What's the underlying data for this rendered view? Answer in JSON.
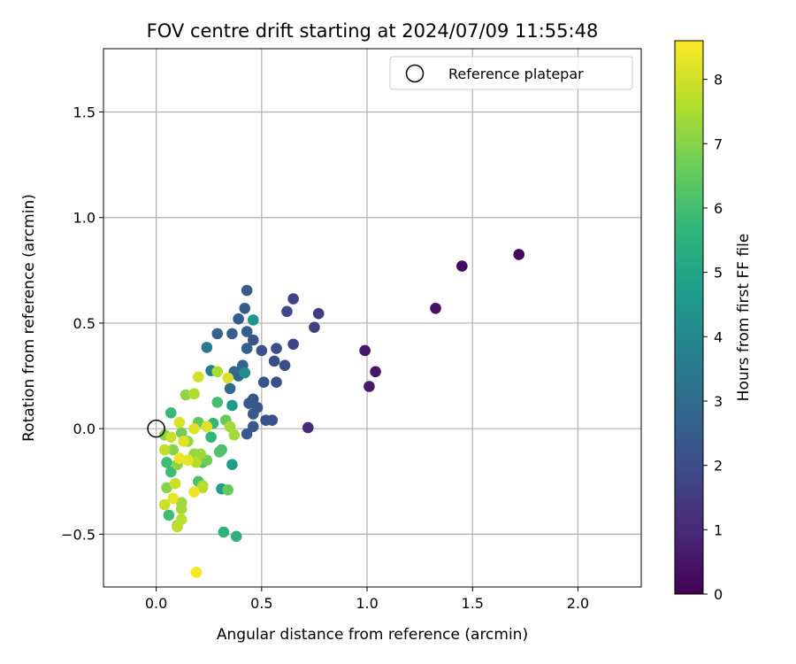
{
  "chart_data": {
    "type": "scatter",
    "title": "FOV centre drift starting at 2024/07/09 11:55:48",
    "xlabel": "Angular distance from reference (arcmin)",
    "ylabel": "Rotation from reference (arcmin)",
    "xlim": [
      -0.25,
      2.3
    ],
    "ylim": [
      -0.75,
      1.8
    ],
    "xticks": [
      0.0,
      0.5,
      1.0,
      1.5,
      2.0
    ],
    "xtick_labels": [
      "0.0",
      "0.5",
      "1.0",
      "1.5",
      "2.0"
    ],
    "yticks": [
      -0.5,
      0.0,
      0.5,
      1.0,
      1.5
    ],
    "ytick_labels": [
      "−0.5",
      "0.0",
      "0.5",
      "1.0",
      "1.5"
    ],
    "grid": true,
    "legend": {
      "placement": "top-right",
      "entries": [
        "Reference platepar"
      ]
    },
    "reference": {
      "x": 0.0,
      "y": 0.0,
      "label": "Reference platepar"
    },
    "colorbar": {
      "label": "Hours from first FF file",
      "colormap": "viridis",
      "range": [
        0,
        8.6
      ],
      "ticks": [
        0,
        1,
        2,
        3,
        4,
        5,
        6,
        7,
        8
      ],
      "tick_labels": [
        "0",
        "1",
        "2",
        "3",
        "4",
        "5",
        "6",
        "7",
        "8"
      ]
    },
    "series": [
      {
        "points": [
          [
            1.72,
            0.825,
            0.2
          ],
          [
            1.45,
            0.77,
            0.3
          ],
          [
            1.325,
            0.57,
            0.4
          ],
          [
            1.04,
            0.27,
            0.5
          ],
          [
            0.99,
            0.37,
            0.55
          ],
          [
            1.01,
            0.2,
            0.6
          ],
          [
            0.72,
            0.005,
            1.0
          ],
          [
            0.77,
            0.545,
            1.5
          ],
          [
            0.75,
            0.48,
            1.6
          ],
          [
            0.65,
            0.615,
            1.7
          ],
          [
            0.65,
            0.4,
            1.8
          ],
          [
            0.62,
            0.555,
            1.9
          ],
          [
            0.61,
            0.3,
            2.0
          ],
          [
            0.57,
            0.38,
            2.0
          ],
          [
            0.56,
            0.32,
            2.05
          ],
          [
            0.57,
            0.22,
            2.1
          ],
          [
            0.55,
            0.04,
            2.1
          ],
          [
            0.52,
            0.04,
            2.15
          ],
          [
            0.5,
            0.37,
            2.2
          ],
          [
            0.51,
            0.22,
            2.2
          ],
          [
            0.48,
            0.1,
            2.25
          ],
          [
            0.46,
            0.42,
            2.3
          ],
          [
            0.46,
            0.14,
            2.3
          ],
          [
            0.46,
            0.07,
            2.35
          ],
          [
            0.46,
            0.01,
            2.4
          ],
          [
            0.44,
            0.12,
            2.4
          ],
          [
            0.43,
            -0.025,
            2.45
          ],
          [
            0.43,
            0.655,
            2.5
          ],
          [
            0.42,
            0.57,
            2.5
          ],
          [
            0.39,
            0.52,
            2.5
          ],
          [
            0.43,
            0.46,
            2.55
          ],
          [
            0.43,
            0.38,
            2.6
          ],
          [
            0.36,
            0.45,
            2.6
          ],
          [
            0.29,
            0.45,
            2.65
          ],
          [
            0.41,
            0.3,
            2.7
          ],
          [
            0.39,
            0.25,
            2.75
          ],
          [
            0.37,
            0.27,
            2.8
          ],
          [
            0.35,
            0.19,
            2.9
          ],
          [
            0.24,
            0.385,
            3.5
          ],
          [
            0.26,
            0.275,
            3.7
          ],
          [
            0.42,
            0.265,
            4.2
          ],
          [
            0.46,
            0.515,
            4.5
          ],
          [
            0.36,
            0.11,
            4.6
          ],
          [
            0.36,
            -0.17,
            4.7
          ],
          [
            0.31,
            -0.285,
            4.7
          ],
          [
            0.32,
            -0.49,
            5.5
          ],
          [
            0.38,
            -0.51,
            5.5
          ],
          [
            0.27,
            0.025,
            5.6
          ],
          [
            0.26,
            -0.04,
            5.7
          ],
          [
            0.07,
            0.075,
            5.8
          ],
          [
            0.05,
            -0.16,
            5.9
          ],
          [
            0.07,
            -0.205,
            5.9
          ],
          [
            0.06,
            -0.41,
            5.9
          ],
          [
            0.29,
            0.125,
            6.0
          ],
          [
            0.31,
            -0.1,
            6.0
          ],
          [
            0.22,
            -0.16,
            6.1
          ],
          [
            0.2,
            -0.25,
            6.1
          ],
          [
            0.1,
            -0.46,
            6.2
          ],
          [
            0.3,
            -0.11,
            6.2
          ],
          [
            0.33,
            0.04,
            6.5
          ],
          [
            0.34,
            -0.29,
            6.5
          ],
          [
            0.2,
            0.03,
            6.5
          ],
          [
            0.24,
            -0.15,
            6.7
          ],
          [
            0.12,
            -0.02,
            6.7
          ],
          [
            0.04,
            -0.03,
            7.0
          ],
          [
            0.05,
            -0.28,
            7.0
          ],
          [
            0.08,
            -0.1,
            7.0
          ],
          [
            0.1,
            -0.17,
            7.1
          ],
          [
            0.14,
            0.16,
            7.1
          ],
          [
            0.15,
            -0.06,
            7.2
          ],
          [
            0.18,
            -0.12,
            7.2
          ],
          [
            0.21,
            -0.12,
            7.3
          ],
          [
            0.22,
            -0.27,
            7.3
          ],
          [
            0.12,
            -0.35,
            7.3
          ],
          [
            0.12,
            -0.38,
            7.4
          ],
          [
            0.35,
            0.01,
            7.4
          ],
          [
            0.37,
            -0.03,
            7.4
          ],
          [
            0.29,
            0.27,
            7.5
          ],
          [
            0.18,
            0.165,
            7.6
          ],
          [
            0.19,
            -0.16,
            7.6
          ],
          [
            0.22,
            -0.28,
            7.7
          ],
          [
            0.12,
            -0.43,
            7.7
          ],
          [
            0.1,
            -0.465,
            7.8
          ],
          [
            0.04,
            -0.1,
            7.8
          ],
          [
            0.07,
            -0.04,
            7.9
          ],
          [
            0.09,
            -0.26,
            7.9
          ],
          [
            0.04,
            -0.36,
            7.9
          ],
          [
            0.2,
            0.245,
            8.0
          ],
          [
            0.34,
            0.24,
            8.1
          ],
          [
            0.11,
            0.03,
            8.1
          ],
          [
            0.18,
            0.0,
            8.2
          ],
          [
            0.24,
            0.01,
            8.2
          ],
          [
            0.13,
            -0.06,
            8.2
          ],
          [
            0.15,
            -0.15,
            8.3
          ],
          [
            0.08,
            -0.33,
            8.3
          ],
          [
            0.18,
            -0.3,
            8.4
          ],
          [
            0.11,
            -0.14,
            8.4
          ],
          [
            0.19,
            -0.68,
            8.5
          ]
        ]
      }
    ]
  }
}
